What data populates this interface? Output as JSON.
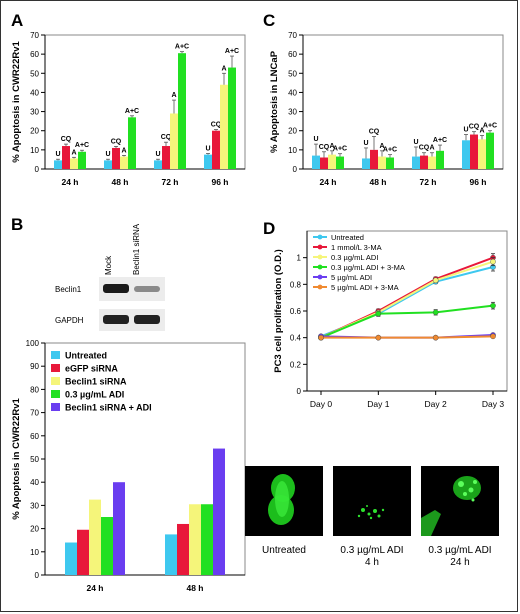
{
  "panels": {
    "A": {
      "letter": "A"
    },
    "B": {
      "letter": "B"
    },
    "C": {
      "letter": "C"
    },
    "D": {
      "letter": "D"
    }
  },
  "blot": {
    "lane_labels": [
      "Mock",
      "Beclin1 siRNA"
    ],
    "row_labels": [
      "Beclin1",
      "GAPDH"
    ]
  },
  "micrographs": [
    {
      "caption_line1": "Untreated",
      "caption_line2": ""
    },
    {
      "caption_line1": "0.3 µg/mL ADI",
      "caption_line2": "4 h"
    },
    {
      "caption_line1": "0.3 µg/mL ADI",
      "caption_line2": "24 h"
    }
  ],
  "chart_data": [
    {
      "id": "A",
      "type": "bar",
      "ylabel": "% Apoptosis in CWR22Rv1",
      "categories": [
        "24 h",
        "48 h",
        "72 h",
        "96 h"
      ],
      "ylim": [
        0,
        70
      ],
      "yticks": [
        0,
        10,
        20,
        30,
        40,
        50,
        60,
        70
      ],
      "bar_labels": [
        "U",
        "CQ",
        "A",
        "A+C"
      ],
      "series": [
        {
          "name": "U",
          "color": "#3ec8ef",
          "values": [
            4.5,
            4.5,
            4.5,
            7.5
          ],
          "errors": [
            0.6,
            0.6,
            0.6,
            0.6
          ]
        },
        {
          "name": "CQ",
          "color": "#e8183a",
          "values": [
            12,
            11,
            12,
            20
          ],
          "errors": [
            1,
            0.8,
            2,
            0.6
          ]
        },
        {
          "name": "A",
          "color": "#f5f57a",
          "values": [
            5.5,
            6.5,
            29,
            44
          ],
          "errors": [
            0.6,
            0.6,
            7,
            6
          ]
        },
        {
          "name": "A+C",
          "color": "#21e021",
          "values": [
            9,
            27,
            60.5,
            53
          ],
          "errors": [
            0.8,
            0.8,
            0.8,
            6
          ]
        }
      ]
    },
    {
      "id": "C",
      "type": "bar",
      "ylabel": "% Apoptosis in LNCaP",
      "categories": [
        "24 h",
        "48 h",
        "72 h",
        "96 h"
      ],
      "ylim": [
        0,
        70
      ],
      "yticks": [
        0,
        10,
        20,
        30,
        40,
        50,
        60,
        70
      ],
      "bar_labels": [
        "U",
        "CQ",
        "A",
        "A+C"
      ],
      "series": [
        {
          "name": "U",
          "color": "#3ec8ef",
          "values": [
            7,
            5.5,
            6.5,
            15
          ],
          "errors": [
            6,
            5.5,
            5,
            3
          ]
        },
        {
          "name": "CQ",
          "color": "#e8183a",
          "values": [
            6,
            10,
            7,
            18
          ],
          "errors": [
            3,
            7,
            1.5,
            1.5
          ]
        },
        {
          "name": "A",
          "color": "#f5f57a",
          "values": [
            7.5,
            6.5,
            6.5,
            15.5
          ],
          "errors": [
            2,
            3,
            2,
            2
          ]
        },
        {
          "name": "A+C",
          "color": "#21e021",
          "values": [
            6.5,
            6,
            9.5,
            19
          ],
          "errors": [
            1.5,
            1.5,
            3,
            1
          ]
        }
      ]
    },
    {
      "id": "B",
      "type": "bar",
      "ylabel": "% Apoptosis in CWR22Rv1",
      "categories": [
        "24 h",
        "48 h"
      ],
      "ylim": [
        0,
        100
      ],
      "yticks": [
        0,
        10,
        20,
        30,
        40,
        50,
        60,
        70,
        80,
        90,
        100
      ],
      "legend_position": "top-left",
      "series": [
        {
          "name": "Untreated",
          "color": "#3ec8ef",
          "values": [
            14,
            17.5
          ]
        },
        {
          "name": "eGFP siRNA",
          "color": "#e8183a",
          "values": [
            19.5,
            22
          ]
        },
        {
          "name": "Beclin1 siRNA",
          "color": "#f5f57a",
          "values": [
            32.5,
            30.5
          ]
        },
        {
          "name": "0.3 µg/mL ADI",
          "color": "#21e021",
          "values": [
            25,
            30.5
          ]
        },
        {
          "name": "Beclin1 siRNA + ADI",
          "color": "#6a3df0",
          "values": [
            40,
            54.5
          ]
        }
      ]
    },
    {
      "id": "D",
      "type": "line",
      "ylabel": "PC3 cell proliferation (O.D.)",
      "x": [
        "Day 0",
        "Day 1",
        "Day 2",
        "Day 3"
      ],
      "ylim": [
        0,
        1.2
      ],
      "yticks": [
        0,
        0.2,
        0.4,
        0.6,
        0.8,
        1
      ],
      "ytick_labels": [
        "0",
        "0.2",
        "0.4",
        "0.6",
        "0.8",
        "1"
      ],
      "legend_position": "top-left",
      "series": [
        {
          "name": "Untreated",
          "color": "#3ec8ef",
          "marker": "diamond",
          "values": [
            0.41,
            0.58,
            0.82,
            0.93
          ],
          "errors": [
            0.01,
            0.015,
            0.015,
            0.03
          ]
        },
        {
          "name": "1 mmol/L 3-MA",
          "color": "#e8183a",
          "marker": "square",
          "values": [
            0.4,
            0.6,
            0.84,
            1.0
          ],
          "errors": [
            0.01,
            0.015,
            0.015,
            0.03
          ]
        },
        {
          "name": "0.3 µg/mL ADI",
          "color": "#f5f57a",
          "marker": "triangle",
          "values": [
            0.4,
            0.59,
            0.83,
            0.97
          ],
          "errors": [
            0.01,
            0.015,
            0.015,
            0.03
          ]
        },
        {
          "name": "0.3 µg/mL ADI + 3-MA",
          "color": "#21e021",
          "marker": "x",
          "values": [
            0.4,
            0.58,
            0.59,
            0.64
          ],
          "errors": [
            0.01,
            0.02,
            0.02,
            0.025
          ]
        },
        {
          "name": "5 µg/mL ADI",
          "color": "#6a3df0",
          "marker": "star",
          "values": [
            0.41,
            0.4,
            0.4,
            0.42
          ],
          "errors": [
            0.01,
            0.01,
            0.01,
            0.01
          ]
        },
        {
          "name": "5 µg/mL ADI + 3-MA",
          "color": "#f08a30",
          "marker": "circle",
          "values": [
            0.4,
            0.4,
            0.4,
            0.41
          ],
          "errors": [
            0.01,
            0.01,
            0.01,
            0.01
          ]
        }
      ]
    }
  ]
}
